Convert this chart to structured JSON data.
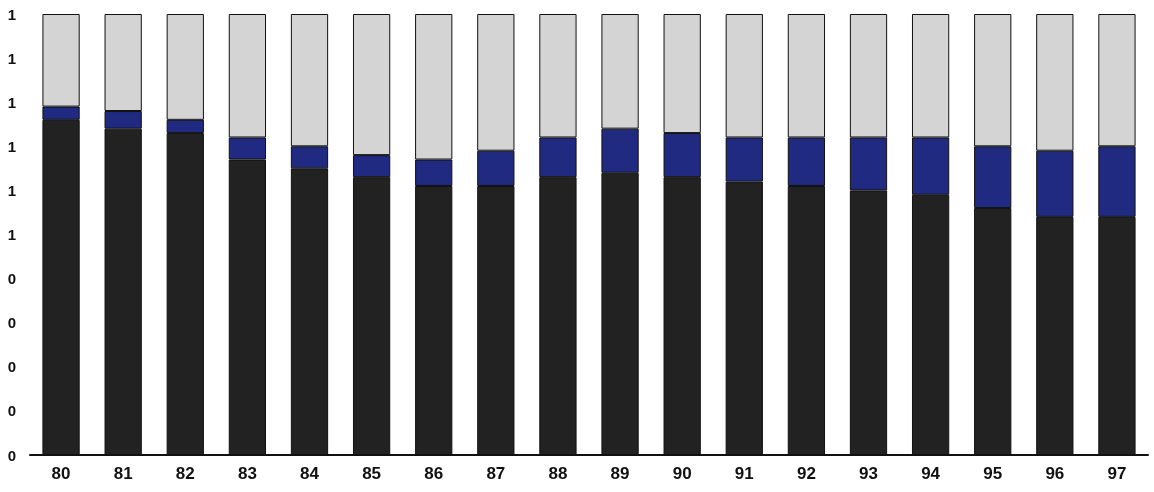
{
  "chart_data": {
    "type": "bar",
    "stacked": true,
    "categories": [
      "80",
      "81",
      "82",
      "83",
      "84",
      "85",
      "86",
      "87",
      "88",
      "89",
      "90",
      "91",
      "92",
      "93",
      "94",
      "95",
      "96",
      "97"
    ],
    "series": [
      {
        "color": "#222222",
        "values": [
          0.76,
          0.74,
          0.73,
          0.67,
          0.65,
          0.63,
          0.61,
          0.61,
          0.63,
          0.64,
          0.63,
          0.62,
          0.61,
          0.6,
          0.59,
          0.56,
          0.54,
          0.54
        ]
      },
      {
        "color": "#1f2a80",
        "values": [
          0.03,
          0.04,
          0.03,
          0.05,
          0.05,
          0.05,
          0.06,
          0.08,
          0.09,
          0.1,
          0.1,
          0.1,
          0.11,
          0.12,
          0.13,
          0.14,
          0.15,
          0.16
        ]
      },
      {
        "color": "#d4d4d4",
        "values": [
          0.21,
          0.22,
          0.24,
          0.28,
          0.3,
          0.32,
          0.33,
          0.31,
          0.28,
          0.26,
          0.27,
          0.28,
          0.28,
          0.28,
          0.28,
          0.3,
          0.31,
          0.3
        ]
      }
    ],
    "ylim": [
      0,
      1
    ],
    "yticks": [
      {
        "value": 0,
        "label": "0"
      },
      {
        "value": 0.1,
        "label": "0"
      },
      {
        "value": 0.2,
        "label": "0"
      },
      {
        "value": 0.3,
        "label": "0"
      },
      {
        "value": 0.4,
        "label": "0"
      },
      {
        "value": 0.5,
        "label": "1"
      },
      {
        "value": 0.6,
        "label": "1"
      },
      {
        "value": 0.7,
        "label": "1"
      },
      {
        "value": 0.8,
        "label": "1"
      },
      {
        "value": 0.9,
        "label": "1"
      },
      {
        "value": 1,
        "label": "1"
      }
    ],
    "grid": false
  }
}
